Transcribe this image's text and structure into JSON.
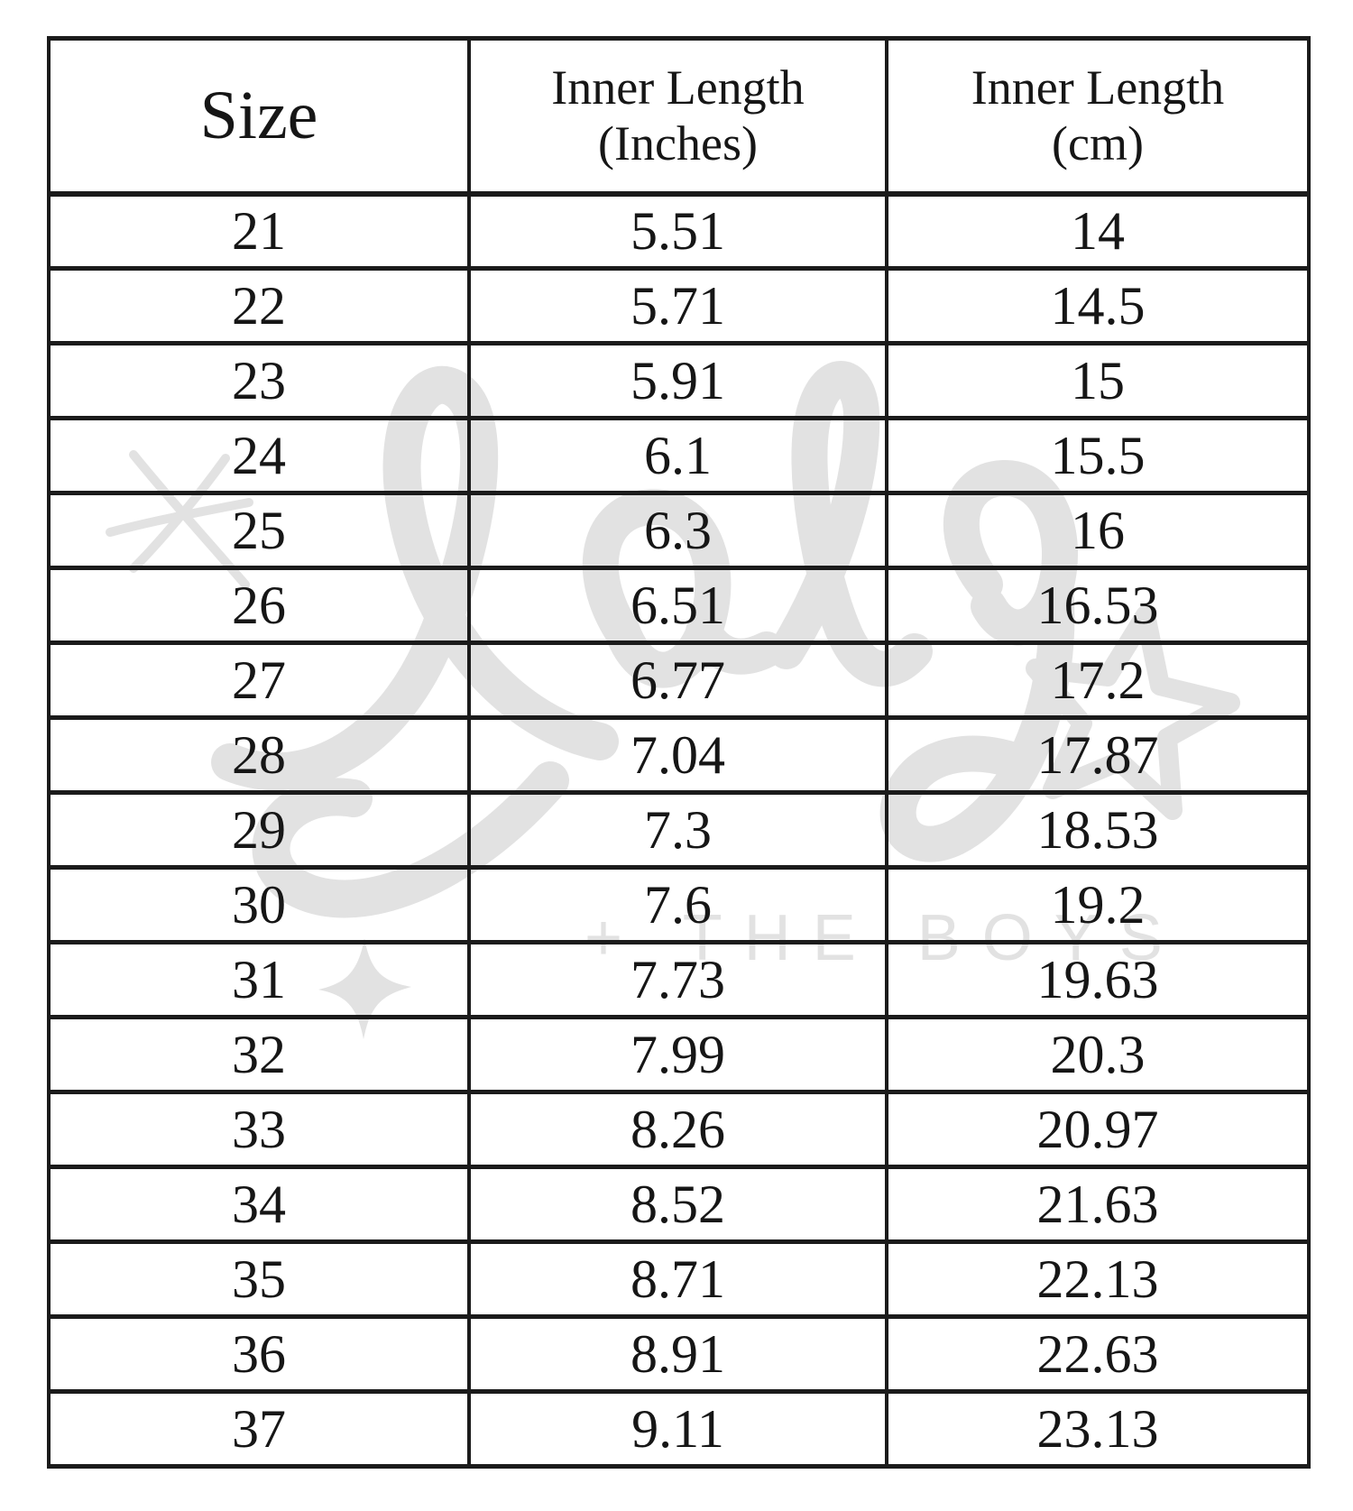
{
  "chart_data": {
    "type": "table",
    "columns": [
      {
        "id": "size",
        "label": "Size",
        "label_line2": ""
      },
      {
        "id": "inches",
        "label": "Inner Length",
        "label_line2": "(Inches)"
      },
      {
        "id": "cm",
        "label": "Inner Length",
        "label_line2": "(cm)"
      }
    ],
    "rows": [
      [
        "21",
        "5.51",
        "14"
      ],
      [
        "22",
        "5.71",
        "14.5"
      ],
      [
        "23",
        "5.91",
        "15"
      ],
      [
        "24",
        "6.1",
        "15.5"
      ],
      [
        "25",
        "6.3",
        "16"
      ],
      [
        "26",
        "6.51",
        "16.53"
      ],
      [
        "27",
        "6.77",
        "17.2"
      ],
      [
        "28",
        "7.04",
        "17.87"
      ],
      [
        "29",
        "7.3",
        "18.53"
      ],
      [
        "30",
        "7.6",
        "19.2"
      ],
      [
        "31",
        "7.73",
        "19.63"
      ],
      [
        "32",
        "7.99",
        "20.3"
      ],
      [
        "33",
        "8.26",
        "20.97"
      ],
      [
        "34",
        "8.52",
        "21.63"
      ],
      [
        "35",
        "8.71",
        "22.13"
      ],
      [
        "36",
        "8.91",
        "22.63"
      ],
      [
        "37",
        "9.11",
        "23.13"
      ]
    ]
  },
  "watermark": {
    "script_text": "Lola",
    "sub_text": "+ THE BOYS",
    "color": "#e2e2e2"
  },
  "colors": {
    "background": "#ffffff",
    "border": "#1b1b1b",
    "text": "#161616"
  }
}
